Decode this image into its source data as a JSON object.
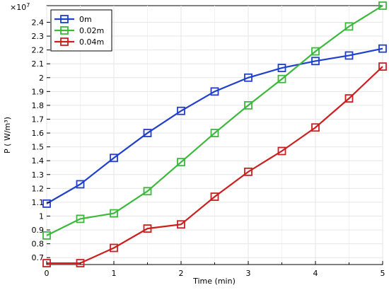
{
  "chart_data": {
    "type": "line",
    "title": "",
    "xlabel": "Time (min)",
    "ylabel": "P ( W/m³)",
    "y_multiplier": "×10",
    "y_multiplier_exp": "7",
    "xlim": [
      0,
      5
    ],
    "ylim": [
      0.65,
      2.52
    ],
    "grid": true,
    "legend_position": "top-left",
    "x_ticks": [
      "0",
      "1",
      "2",
      "3",
      "4",
      "5"
    ],
    "y_ticks": [
      "0.7",
      "0.8",
      "0.9",
      "1",
      "1.1",
      "1.2",
      "1.3",
      "1.4",
      "1.5",
      "1.6",
      "1.7",
      "1.8",
      "1.9",
      "2",
      "2.1",
      "2.2",
      "2.3",
      "2.4"
    ],
    "x": [
      0,
      0.5,
      1,
      1.5,
      2,
      2.5,
      3,
      3.5,
      4,
      4.5,
      5
    ],
    "series": [
      {
        "name": "0m",
        "color": "#1f3fcc",
        "values": [
          1.09,
          1.23,
          1.42,
          1.6,
          1.76,
          1.9,
          2.0,
          2.07,
          2.12,
          2.16,
          2.21
        ]
      },
      {
        "name": "0.02m",
        "color": "#3cb83c",
        "values": [
          0.86,
          0.98,
          1.02,
          1.18,
          1.39,
          1.6,
          1.8,
          1.99,
          2.19,
          2.37,
          2.52
        ]
      },
      {
        "name": "0.04m",
        "color": "#cc1f1f",
        "values": [
          0.66,
          0.66,
          0.77,
          0.91,
          0.94,
          1.14,
          1.32,
          1.47,
          1.64,
          1.85,
          2.08
        ]
      }
    ]
  }
}
